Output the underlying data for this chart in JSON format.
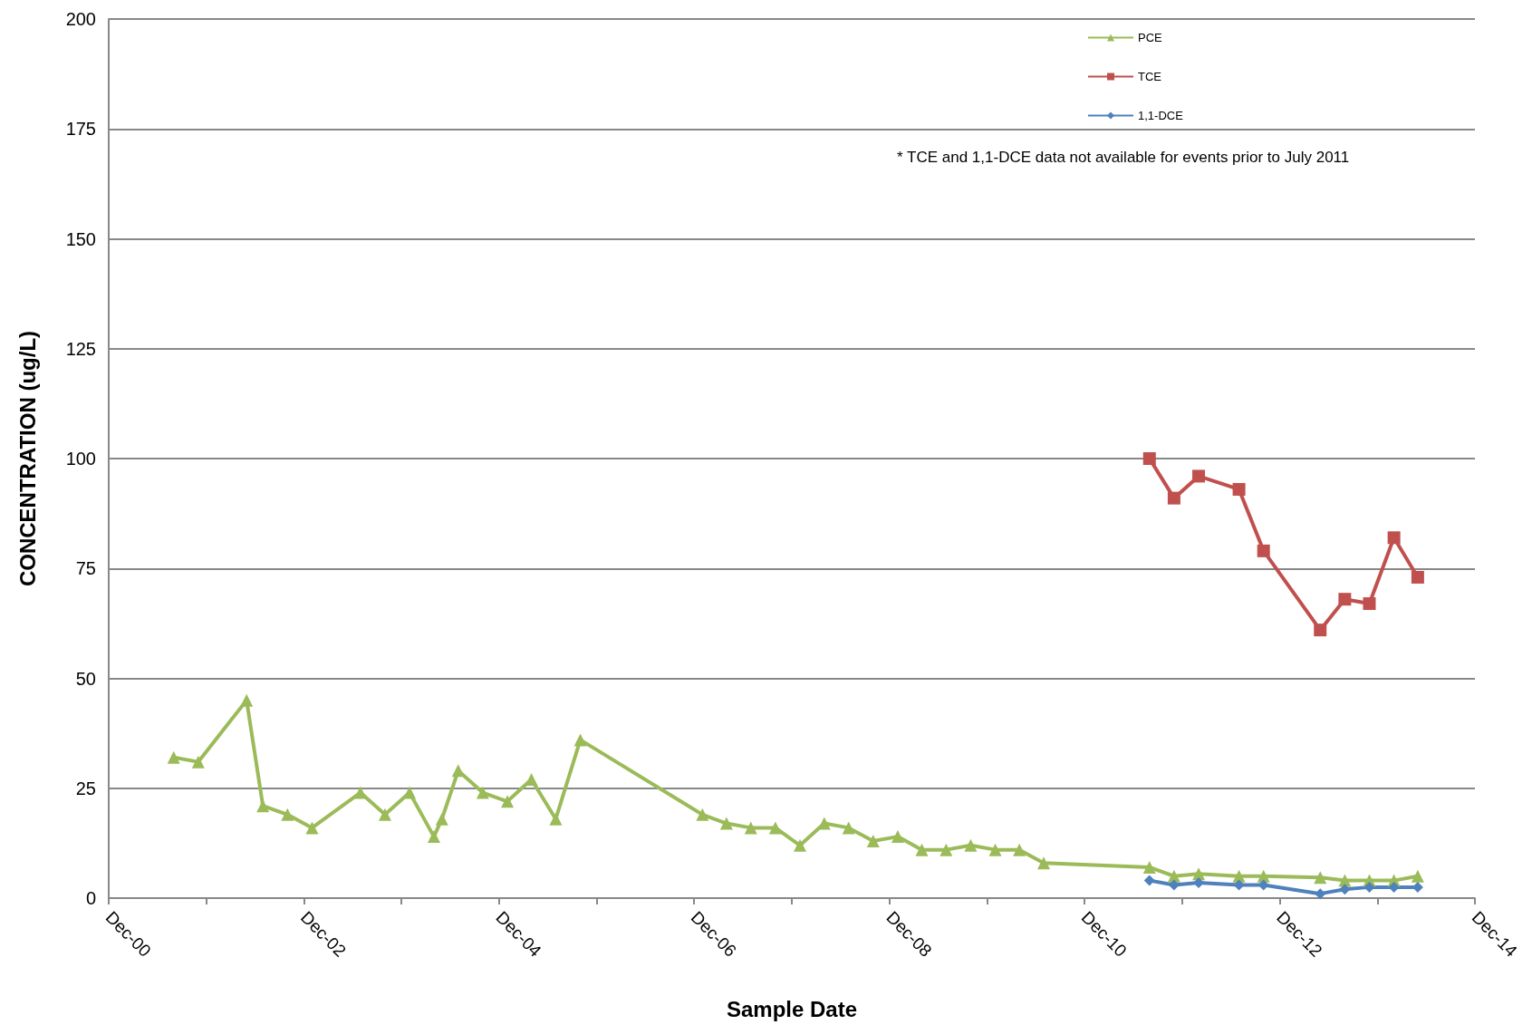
{
  "chart_data": {
    "type": "line",
    "xlabel": "Sample Date",
    "ylabel": "CONCENTRATION (ug/L)",
    "xlim": [
      "2000-12",
      "2014-12"
    ],
    "xticks": [
      {
        "value": "2000-12",
        "label": "Dec-00"
      },
      {
        "value": "2001-12",
        "label": null
      },
      {
        "value": "2002-12",
        "label": "Dec-02"
      },
      {
        "value": "2003-12",
        "label": null
      },
      {
        "value": "2004-12",
        "label": "Dec-04"
      },
      {
        "value": "2005-12",
        "label": null
      },
      {
        "value": "2006-12",
        "label": "Dec-06"
      },
      {
        "value": "2007-12",
        "label": null
      },
      {
        "value": "2008-12",
        "label": "Dec-08"
      },
      {
        "value": "2009-12",
        "label": null
      },
      {
        "value": "2010-12",
        "label": "Dec-10"
      },
      {
        "value": "2011-12",
        "label": null
      },
      {
        "value": "2012-12",
        "label": "Dec-12"
      },
      {
        "value": "2013-12",
        "label": null
      },
      {
        "value": "2014-12",
        "label": "Dec-14"
      }
    ],
    "ylim": [
      0,
      200
    ],
    "yticks": [
      0,
      25,
      50,
      75,
      100,
      125,
      150,
      175,
      200
    ],
    "grid": "y",
    "legend": "top right",
    "annotations": [
      "* TCE and 1,1-DCE data not available for events prior to July 2011"
    ],
    "series": [
      {
        "name": "PCE",
        "color": "#9bbb59",
        "marker": "triangle",
        "x": [
          "2001-08",
          "2001-11",
          "2002-05",
          "2002-07",
          "2002-10",
          "2003-01",
          "2003-07",
          "2003-10",
          "2004-01",
          "2004-04",
          "2004-05",
          "2004-07",
          "2004-10",
          "2005-01",
          "2005-04",
          "2005-07",
          "2005-10",
          "2007-01",
          "2007-04",
          "2007-07",
          "2007-10",
          "2008-01",
          "2008-04",
          "2008-07",
          "2008-10",
          "2009-01",
          "2009-04",
          "2009-07",
          "2009-10",
          "2010-01",
          "2010-04",
          "2010-07",
          "2011-08",
          "2011-11",
          "2012-02",
          "2012-07",
          "2012-10",
          "2013-05",
          "2013-08",
          "2013-11",
          "2014-02",
          "2014-05"
        ],
        "values": [
          32,
          31,
          45,
          21,
          19,
          16,
          24,
          19,
          24,
          14,
          18,
          29,
          24,
          22,
          27,
          18,
          36,
          19,
          17,
          16,
          16,
          12,
          17,
          16,
          13,
          14,
          11,
          11,
          12,
          11,
          11,
          8,
          7,
          5,
          5.5,
          5,
          5,
          4.7,
          4,
          4,
          4,
          5
        ]
      },
      {
        "name": "TCE",
        "color": "#c0504d",
        "marker": "square",
        "x": [
          "2011-08",
          "2011-11",
          "2012-02",
          "2012-07",
          "2012-10",
          "2013-05",
          "2013-08",
          "2013-11",
          "2014-02",
          "2014-05"
        ],
        "values": [
          100,
          91,
          96,
          93,
          79,
          61,
          68,
          67,
          82,
          73
        ]
      },
      {
        "name": "1,1-DCE",
        "color": "#4f81bd",
        "marker": "diamond",
        "x": [
          "2011-08",
          "2011-11",
          "2012-02",
          "2012-07",
          "2012-10",
          "2013-05",
          "2013-08",
          "2013-11",
          "2014-02",
          "2014-05"
        ],
        "values": [
          4,
          3,
          3.5,
          3,
          3,
          1,
          2,
          2.5,
          2.5,
          2.5
        ]
      }
    ]
  }
}
